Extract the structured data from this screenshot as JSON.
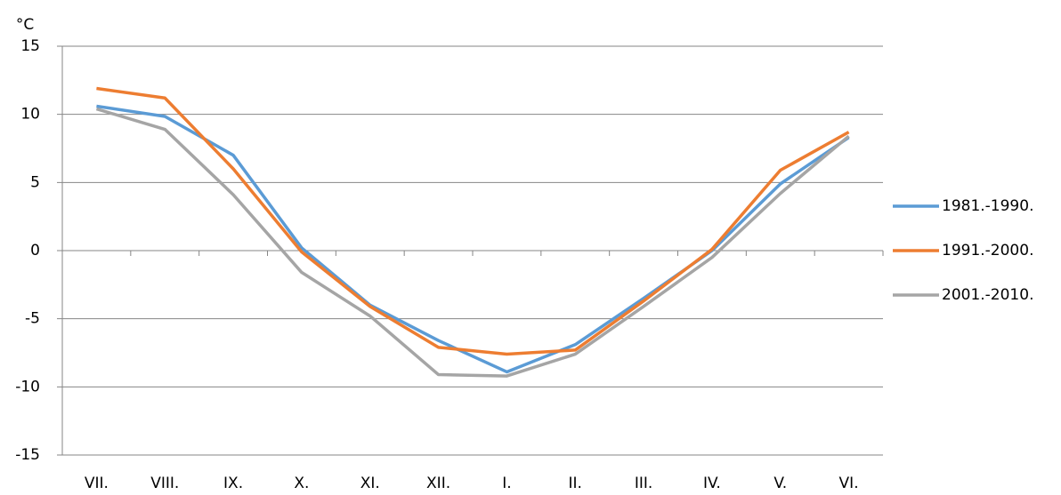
{
  "chart_data": {
    "type": "line",
    "y_label": "°C",
    "categories": [
      "VII.",
      "VIII.",
      "IX.",
      "X.",
      "XI.",
      "XII.",
      "I.",
      "II.",
      "III.",
      "IV.",
      "V.",
      "VI."
    ],
    "series": [
      {
        "name": "1981.-1990.",
        "color": "#5b9bd5",
        "values": [
          10.6,
          9.85,
          7.0,
          0.2,
          -4.0,
          -6.6,
          -8.9,
          -6.9,
          -3.5,
          0,
          4.9,
          8.3
        ]
      },
      {
        "name": "1991.-2000.",
        "color": "#ed7d31",
        "values": [
          11.9,
          11.2,
          6.0,
          -0.1,
          -4.1,
          -7.1,
          -7.6,
          -7.3,
          -3.7,
          0.1,
          5.9,
          8.7
        ]
      },
      {
        "name": "2001.-2010.",
        "color": "#a5a5a5",
        "values": [
          10.4,
          8.9,
          4.1,
          -1.6,
          -4.8,
          -9.1,
          -9.2,
          -7.6,
          -4.1,
          -0.5,
          4.2,
          8.4
        ]
      }
    ],
    "ylim": [
      -15,
      15
    ],
    "yticks": [
      -15,
      -10,
      -5,
      0,
      5,
      10,
      15
    ],
    "grid": true,
    "legend": "right"
  }
}
